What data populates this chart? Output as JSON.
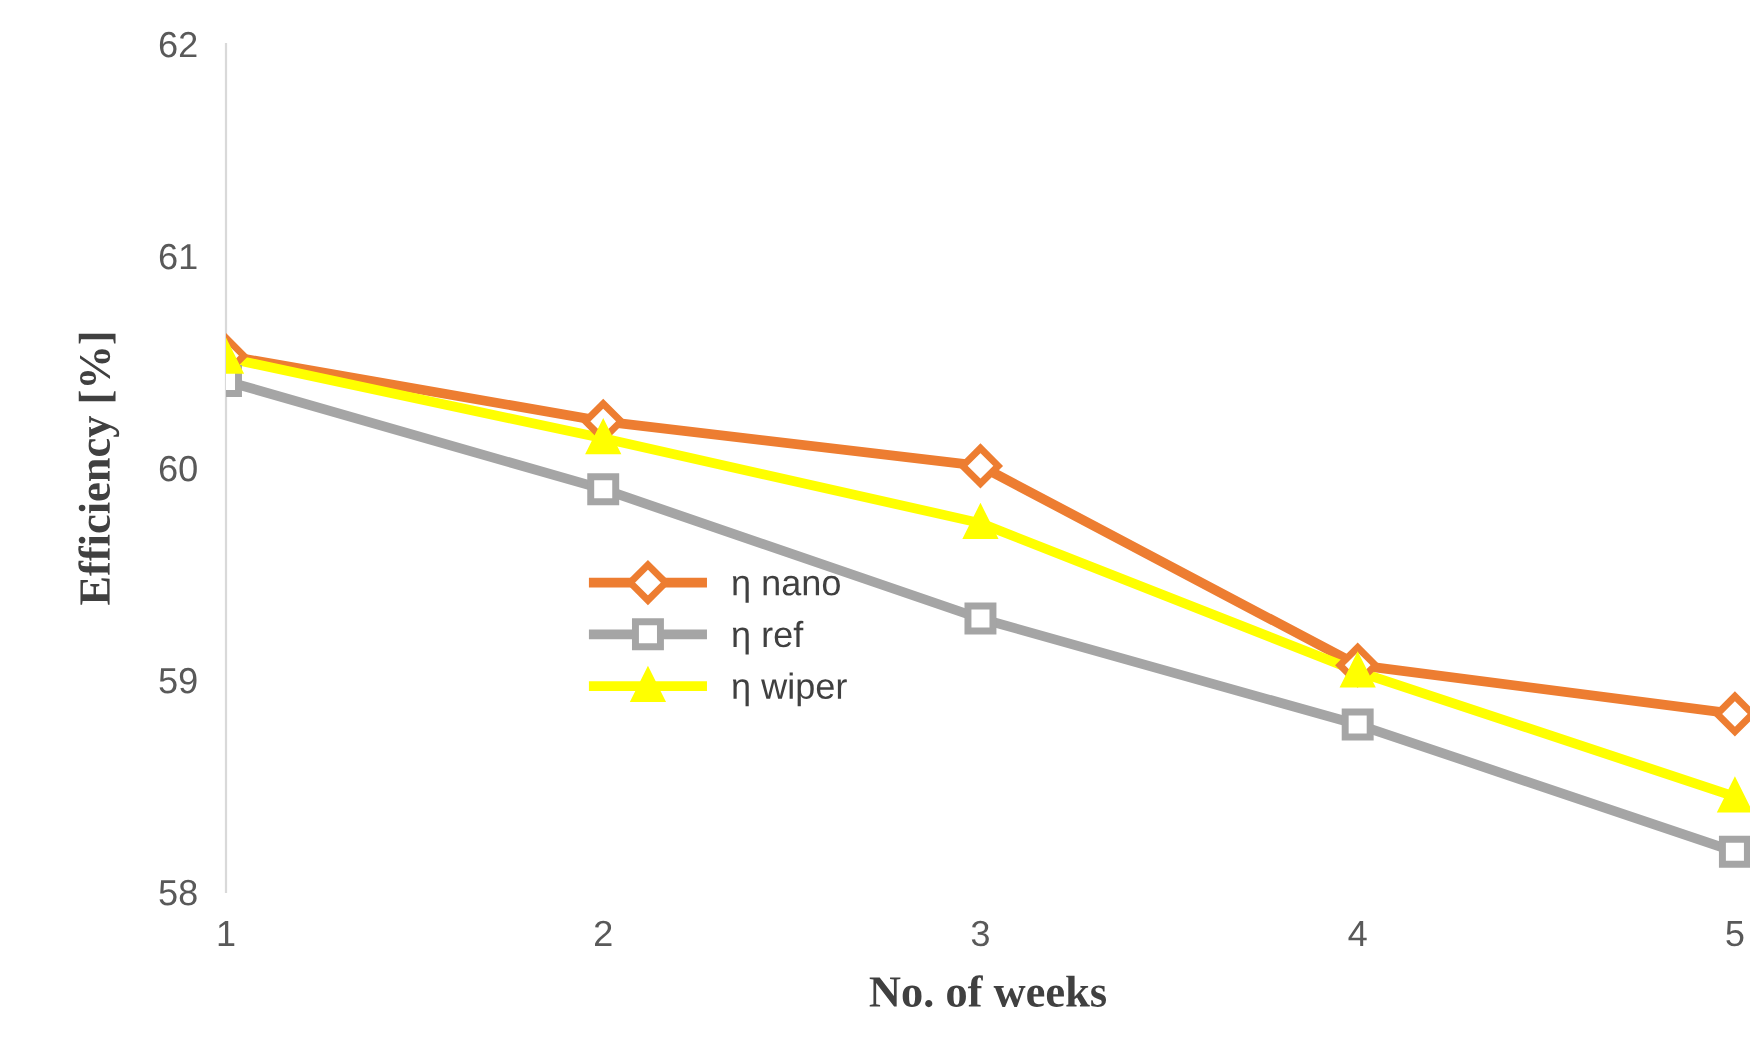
{
  "chart_data": {
    "type": "line",
    "xlabel": "No. of weeks",
    "ylabel": "Efficiency [%]",
    "categories": [
      "1",
      "2",
      "3",
      "4",
      "5"
    ],
    "series": [
      {
        "name": "η nano",
        "color": "#ed7d31",
        "marker": "diamond",
        "values": [
          60.53,
          60.22,
          60.01,
          59.07,
          58.84
        ]
      },
      {
        "name": "η ref",
        "color": "#a5a5a5",
        "marker": "square",
        "values": [
          60.41,
          59.9,
          59.29,
          58.79,
          58.19
        ]
      },
      {
        "name": "η wiper",
        "color": "#ffff00",
        "marker": "triangle",
        "values": [
          60.52,
          60.14,
          59.74,
          59.04,
          58.45
        ]
      }
    ],
    "ylim": [
      58,
      62
    ],
    "yticks": [
      58,
      59,
      60,
      61,
      62
    ],
    "grid": false,
    "legend": "center",
    "line_style": "solid"
  }
}
